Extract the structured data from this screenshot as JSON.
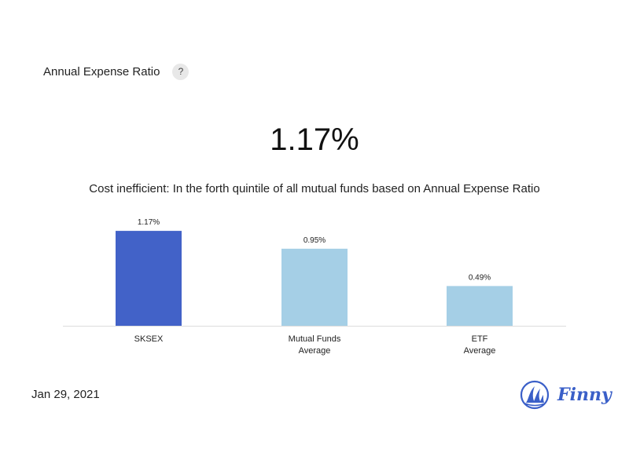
{
  "header": {
    "title": "Annual Expense Ratio",
    "help_label": "?"
  },
  "headline_value": "1.17%",
  "subtitle": "Cost inefficient: In the forth quintile of all mutual funds based on Annual Expense Ratio",
  "footer": {
    "date": "Jan 29, 2021",
    "brand": "Finny"
  },
  "chart_data": {
    "type": "bar",
    "title": "",
    "xlabel": "",
    "ylabel": "",
    "ylim": [
      0,
      1.2
    ],
    "categories": [
      [
        "SKSEX"
      ],
      [
        "Mutual Funds",
        "Average"
      ],
      [
        "ETF",
        "Average"
      ]
    ],
    "values": [
      1.17,
      0.95,
      0.49
    ],
    "value_labels": [
      "1.17%",
      "0.95%",
      "0.49%"
    ],
    "colors": [
      "#4262c8",
      "#a5cfe6",
      "#a5cfe6"
    ],
    "grid": false,
    "legend": "none"
  }
}
